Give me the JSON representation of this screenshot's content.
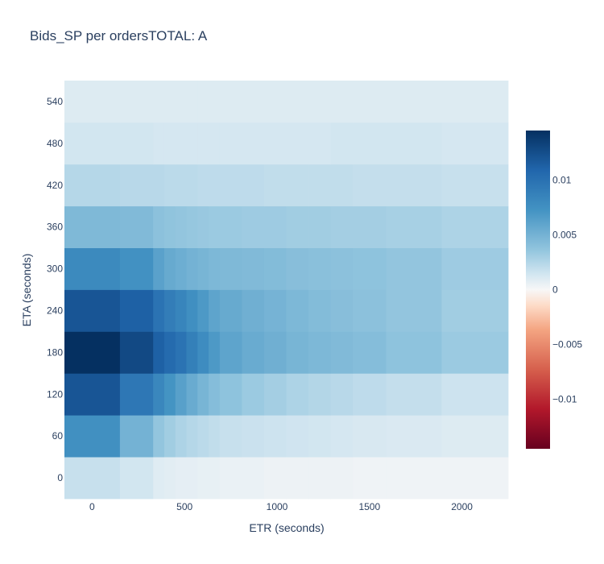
{
  "chart_data": {
    "type": "heatmap",
    "title": "Bids_SP per ordersTOTAL: A",
    "xlabel": "ETR (seconds)",
    "ylabel": "ETA (seconds)",
    "x_bin_edges": [
      -150,
      150,
      330,
      390,
      450,
      510,
      570,
      630,
      690,
      810,
      930,
      1050,
      1170,
      1290,
      1410,
      1590,
      1890,
      2250
    ],
    "y_bins": [
      0,
      60,
      120,
      180,
      240,
      300,
      360,
      420,
      480,
      540
    ],
    "xticks": [
      "0",
      "500",
      "1000",
      "1500",
      "2000"
    ],
    "yticks": [
      "0",
      "60",
      "120",
      "180",
      "240",
      "300",
      "360",
      "420",
      "480",
      "540"
    ],
    "z": [
      [
        0.0018,
        0.0014,
        0.0009,
        0.0008,
        0.0007,
        0.0007,
        0.0006,
        0.0006,
        0.0005,
        0.0005,
        0.0004,
        0.0004,
        0.0004,
        0.0004,
        0.0003,
        0.0003,
        0.0003
      ],
      [
        0.0075,
        0.005,
        0.0036,
        0.0031,
        0.0027,
        0.0024,
        0.0022,
        0.002,
        0.0018,
        0.0017,
        0.0016,
        0.0015,
        0.0014,
        0.0013,
        0.0012,
        0.0011,
        0.001
      ],
      [
        0.012,
        0.0095,
        0.0082,
        0.0072,
        0.0063,
        0.0055,
        0.0048,
        0.0042,
        0.0038,
        0.0033,
        0.003,
        0.0027,
        0.0025,
        0.0023,
        0.0021,
        0.0019,
        0.0016
      ],
      [
        0.0145,
        0.0128,
        0.0112,
        0.0105,
        0.0098,
        0.0088,
        0.0078,
        0.0068,
        0.006,
        0.0055,
        0.0052,
        0.0048,
        0.0046,
        0.0044,
        0.0042,
        0.0038,
        0.0033
      ],
      [
        0.012,
        0.0112,
        0.0098,
        0.009,
        0.0084,
        0.0076,
        0.0068,
        0.006,
        0.0056,
        0.0052,
        0.0049,
        0.0046,
        0.0043,
        0.0041,
        0.0039,
        0.0036,
        0.0031
      ],
      [
        0.008,
        0.0074,
        0.0062,
        0.0056,
        0.0053,
        0.005,
        0.0048,
        0.0046,
        0.0045,
        0.0044,
        0.0043,
        0.0041,
        0.004,
        0.0039,
        0.0038,
        0.0036,
        0.0032
      ],
      [
        0.0045,
        0.0044,
        0.0039,
        0.0037,
        0.0036,
        0.0035,
        0.0034,
        0.0033,
        0.0033,
        0.0032,
        0.0032,
        0.0031,
        0.0031,
        0.003,
        0.003,
        0.0029,
        0.0027
      ],
      [
        0.0024,
        0.0023,
        0.0023,
        0.0022,
        0.0022,
        0.0022,
        0.0021,
        0.0021,
        0.0021,
        0.0021,
        0.002,
        0.002,
        0.002,
        0.002,
        0.0019,
        0.0019,
        0.0018
      ],
      [
        0.0014,
        0.0014,
        0.0013,
        0.0013,
        0.0013,
        0.0013,
        0.0013,
        0.0013,
        0.0013,
        0.0013,
        0.0013,
        0.0013,
        0.0013,
        0.0014,
        0.0014,
        0.0014,
        0.0013
      ],
      [
        0.001,
        0.001,
        0.001,
        0.001,
        0.001,
        0.001,
        0.001,
        0.001,
        0.001,
        0.001,
        0.001,
        0.001,
        0.001,
        0.001,
        0.001,
        0.001,
        0.001
      ]
    ],
    "xlim": [
      -150,
      2250
    ],
    "colorscale": "RdBu",
    "zlim": [
      -0.0145,
      0.0145
    ],
    "colorbar_ticks": [
      {
        "value": 0.01,
        "label": "0.01"
      },
      {
        "value": 0.005,
        "label": "0.005"
      },
      {
        "value": 0,
        "label": "0"
      },
      {
        "value": -0.005,
        "label": "−0.005"
      },
      {
        "value": -0.01,
        "label": "−0.01"
      }
    ],
    "grid": false,
    "plot_background": "#e5ecf6"
  }
}
